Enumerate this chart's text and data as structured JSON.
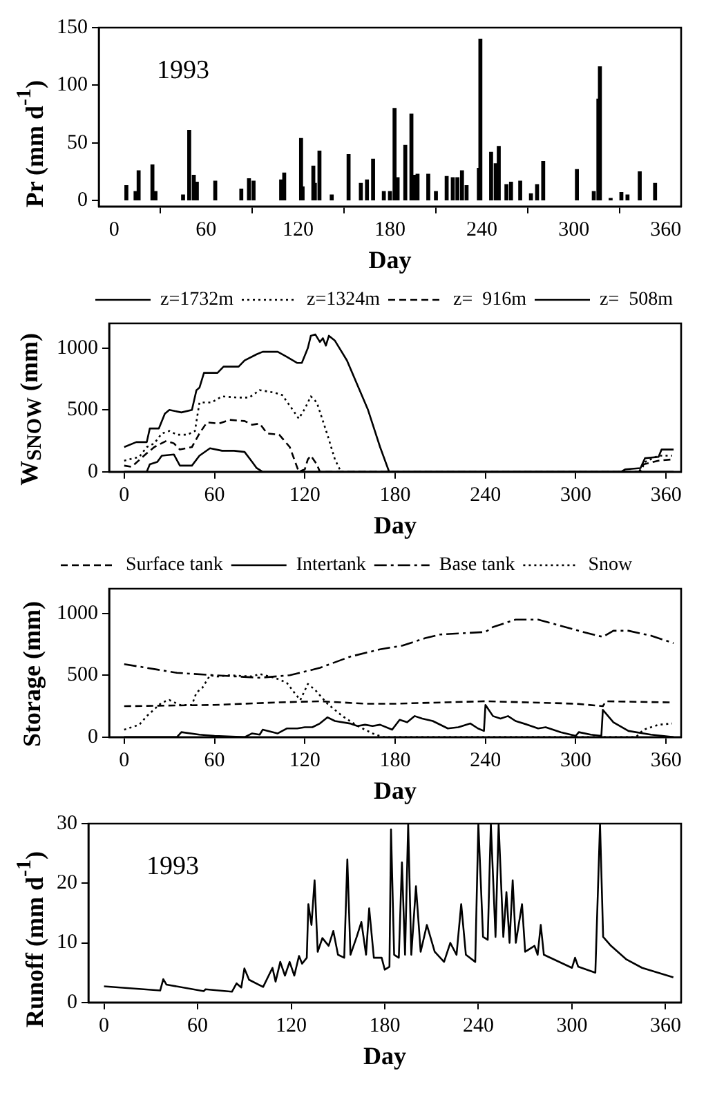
{
  "chart_data": [
    {
      "type": "bar",
      "xlabel": "Day",
      "ylabel": "Pr (mm d$^{-1}$)",
      "annotations": [
        "1993"
      ],
      "color": "#000000",
      "x": [
        8,
        14,
        16,
        25,
        27,
        45,
        49,
        52,
        54,
        66,
        83,
        88,
        91,
        109,
        111,
        122,
        123,
        130,
        131,
        134,
        142,
        153,
        161,
        165,
        169,
        176,
        180,
        183,
        185,
        190,
        194,
        196,
        198,
        205,
        210,
        217,
        221,
        224,
        227,
        230,
        238,
        239,
        246,
        249,
        251,
        256,
        259,
        265,
        272,
        276,
        280,
        302,
        313,
        316,
        317,
        324,
        331,
        335,
        343,
        353
      ],
      "values": [
        13,
        8,
        26,
        31,
        8,
        5,
        61,
        22,
        16,
        17,
        10,
        19,
        17,
        18,
        24,
        54,
        12,
        30,
        15,
        43,
        5,
        40,
        15,
        18,
        36,
        8,
        8,
        80,
        20,
        48,
        75,
        22,
        23,
        23,
        8,
        21,
        20,
        20,
        26,
        13,
        28,
        140,
        42,
        32,
        47,
        14,
        16,
        17,
        6,
        14,
        34,
        27,
        8,
        88,
        116,
        2,
        7,
        5,
        25,
        15
      ],
      "xlim": [
        -10,
        370
      ],
      "xticks": [
        0,
        60,
        120,
        180,
        240,
        300,
        360
      ],
      "ylim": [
        -5,
        150
      ],
      "yticks": [
        0,
        50,
        100,
        150
      ]
    },
    {
      "type": "line",
      "xlabel": "Day",
      "ylabel": "W$_{SNOW}$ (mm)",
      "legend": "top right",
      "xlim": [
        -10,
        370
      ],
      "xticks": [
        0,
        60,
        120,
        180,
        240,
        300,
        360
      ],
      "ylim": [
        0,
        1200
      ],
      "yticks": [
        0,
        500,
        1000
      ],
      "series": [
        {
          "name": "z=1732m",
          "color": "#000000",
          "line_style": "solid",
          "x": [
            0,
            8,
            15,
            17,
            23,
            27,
            30,
            38,
            45,
            48,
            50,
            53,
            62,
            66,
            76,
            80,
            88,
            92,
            102,
            108,
            115,
            118,
            122,
            124,
            127,
            130,
            132,
            134,
            136,
            140,
            148,
            155,
            162,
            170,
            176,
            330,
            333,
            343,
            346,
            355,
            357,
            365
          ],
          "values": [
            200,
            240,
            240,
            350,
            350,
            470,
            500,
            480,
            500,
            660,
            680,
            800,
            800,
            850,
            850,
            900,
            950,
            970,
            970,
            930,
            880,
            880,
            1000,
            1100,
            1110,
            1050,
            1080,
            1020,
            1100,
            1060,
            900,
            700,
            500,
            200,
            0,
            0,
            20,
            30,
            110,
            120,
            180,
            180
          ]
        },
        {
          "name": "z=1324m",
          "color": "#000000",
          "line_style": "dotted",
          "x": [
            0,
            10,
            15,
            20,
            25,
            30,
            35,
            42,
            47,
            50,
            58,
            65,
            75,
            83,
            90,
            100,
            105,
            112,
            116,
            120,
            124,
            128,
            135,
            140,
            144,
            343,
            346,
            355,
            364
          ],
          "values": [
            90,
            120,
            200,
            230,
            310,
            330,
            300,
            300,
            330,
            560,
            560,
            610,
            600,
            600,
            660,
            640,
            620,
            500,
            430,
            510,
            610,
            560,
            300,
            100,
            0,
            0,
            80,
            130,
            130
          ]
        },
        {
          "name": "z=  916m",
          "color": "#000000",
          "line_style": "dashed",
          "x": [
            0,
            5,
            15,
            20,
            28,
            33,
            37,
            45,
            50,
            55,
            63,
            70,
            80,
            85,
            90,
            95,
            103,
            110,
            116,
            120,
            122,
            124,
            128,
            130,
            342,
            345,
            355,
            364
          ],
          "values": [
            50,
            40,
            150,
            200,
            250,
            230,
            180,
            200,
            310,
            400,
            390,
            420,
            410,
            380,
            390,
            310,
            300,
            200,
            0,
            20,
            100,
            130,
            60,
            0,
            0,
            60,
            90,
            100
          ]
        },
        {
          "name": "z=  508m",
          "color": "#000000",
          "line_style": "solid",
          "x": [
            0,
            15,
            17,
            22,
            25,
            33,
            37,
            45,
            50,
            57,
            65,
            73,
            80,
            85,
            88,
            92,
            365
          ],
          "values": [
            0,
            0,
            60,
            80,
            130,
            140,
            50,
            50,
            130,
            190,
            170,
            170,
            160,
            80,
            30,
            0,
            0
          ]
        }
      ]
    },
    {
      "type": "line",
      "xlabel": "Day",
      "ylabel": "Storage (mm)",
      "legend": "top left",
      "xlim": [
        -10,
        370
      ],
      "xticks": [
        0,
        60,
        120,
        180,
        240,
        300,
        360
      ],
      "ylim": [
        0,
        1200
      ],
      "yticks": [
        0,
        500,
        1000
      ],
      "series": [
        {
          "name": "Surface tank",
          "color": "#000000",
          "line_style": "dashed",
          "x": [
            0,
            60,
            100,
            130,
            160,
            180,
            210,
            240,
            270,
            300,
            318,
            320,
            365
          ],
          "values": [
            250,
            260,
            280,
            290,
            270,
            270,
            280,
            290,
            280,
            270,
            250,
            290,
            280
          ]
        },
        {
          "name": "Intertank",
          "color": "#000000",
          "line_style": "solid",
          "x": [
            0,
            35,
            38,
            50,
            60,
            80,
            85,
            90,
            92,
            102,
            108,
            115,
            120,
            125,
            130,
            135,
            140,
            150,
            155,
            160,
            165,
            170,
            178,
            183,
            188,
            193,
            198,
            205,
            215,
            222,
            230,
            235,
            239,
            240,
            245,
            250,
            255,
            260,
            268,
            275,
            280,
            290,
            300,
            302,
            310,
            317,
            318,
            325,
            335,
            350,
            365
          ],
          "values": [
            0,
            0,
            40,
            20,
            10,
            0,
            30,
            20,
            60,
            30,
            70,
            70,
            80,
            80,
            110,
            160,
            130,
            110,
            90,
            100,
            90,
            100,
            60,
            140,
            120,
            170,
            150,
            130,
            70,
            80,
            110,
            70,
            50,
            260,
            170,
            150,
            170,
            130,
            100,
            70,
            80,
            40,
            10,
            40,
            20,
            10,
            220,
            120,
            50,
            20,
            0
          ]
        },
        {
          "name": "Base tank",
          "color": "#000000",
          "line_style": "dashdot",
          "x": [
            0,
            20,
            35,
            60,
            90,
            110,
            120,
            130,
            150,
            170,
            185,
            200,
            210,
            225,
            240,
            245,
            260,
            275,
            290,
            305,
            318,
            325,
            335,
            350,
            365
          ],
          "values": [
            590,
            550,
            520,
            500,
            480,
            500,
            530,
            560,
            650,
            710,
            740,
            800,
            830,
            840,
            850,
            890,
            950,
            950,
            900,
            850,
            810,
            860,
            860,
            820,
            760
          ]
        },
        {
          "name": "Snow",
          "color": "#000000",
          "line_style": "dotted",
          "x": [
            0,
            10,
            15,
            25,
            30,
            37,
            45,
            48,
            52,
            57,
            62,
            70,
            85,
            90,
            100,
            108,
            113,
            117,
            122,
            127,
            135,
            145,
            155,
            165,
            172,
            340,
            345,
            355,
            364
          ],
          "values": [
            60,
            100,
            170,
            280,
            300,
            260,
            260,
            360,
            400,
            500,
            490,
            500,
            490,
            510,
            480,
            440,
            360,
            300,
            430,
            380,
            270,
            170,
            90,
            30,
            0,
            0,
            60,
            100,
            110
          ]
        }
      ]
    },
    {
      "type": "line",
      "xlabel": "Day",
      "ylabel": "Runoff (mm d$^{-1}$)",
      "annotations": [
        "1993"
      ],
      "xlim": [
        -10,
        370
      ],
      "xticks": [
        0,
        60,
        120,
        180,
        240,
        300,
        360
      ],
      "ylim": [
        0,
        30
      ],
      "yticks": [
        0,
        10,
        20,
        30
      ],
      "series": [
        {
          "color": "#000000",
          "line_style": "solid",
          "x": [
            0,
            36,
            38,
            40,
            64,
            65,
            82,
            85,
            88,
            90,
            93,
            102,
            108,
            110,
            113,
            116,
            119,
            122,
            125,
            127,
            130,
            131,
            133,
            135,
            137,
            140,
            144,
            147,
            150,
            154,
            156,
            158,
            162,
            165,
            168,
            170,
            173,
            178,
            180,
            183,
            184,
            186,
            189,
            191,
            193,
            195,
            197,
            200,
            203,
            207,
            212,
            218,
            222,
            226,
            229,
            232,
            238,
            240,
            243,
            246,
            248,
            251,
            253,
            256,
            258,
            260,
            262,
            264,
            268,
            270,
            276,
            278,
            280,
            282,
            300,
            302,
            304,
            315,
            318,
            320,
            325,
            335,
            345,
            365
          ],
          "values": [
            2.7,
            2.0,
            3.9,
            3.0,
            1.9,
            2.2,
            1.8,
            3.2,
            2.5,
            5.7,
            3.8,
            2.6,
            5.8,
            3.5,
            6.8,
            4.5,
            6.8,
            4.5,
            7.8,
            6.5,
            7.5,
            16.5,
            13,
            20.5,
            8.5,
            10.8,
            9.5,
            12,
            8,
            7.5,
            24,
            8,
            11,
            13.5,
            8,
            15.8,
            7.5,
            7.5,
            5.5,
            6,
            29,
            8,
            7.5,
            23.5,
            8,
            30,
            8,
            19.5,
            8.5,
            13,
            8.5,
            6.8,
            10,
            8,
            16.5,
            8,
            6.8,
            30,
            11,
            10.5,
            30,
            11,
            30,
            11,
            18.5,
            10,
            20.5,
            10,
            16.5,
            8.5,
            9.5,
            8,
            13,
            8,
            5.8,
            7.5,
            6,
            5,
            30,
            11,
            9.5,
            7.2,
            5.8,
            4.2
          ]
        }
      ]
    }
  ]
}
